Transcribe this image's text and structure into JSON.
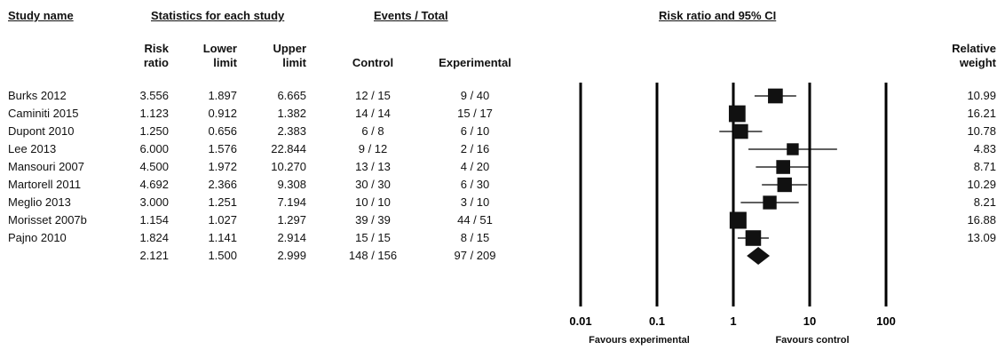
{
  "headers": {
    "study_name": "Study name",
    "statistics": "Statistics for each study",
    "events": "Events / Total",
    "plot": "Risk ratio and 95% CI"
  },
  "columns": {
    "risk_ratio": [
      "Risk",
      "ratio"
    ],
    "lower_limit": [
      "Lower",
      "limit"
    ],
    "upper_limit": [
      "Upper",
      "limit"
    ],
    "control": "Control",
    "experimental": "Experimental",
    "relative_weight": [
      "Relative",
      "weight"
    ]
  },
  "rows": [
    {
      "study": "Burks 2012",
      "rr": "3.556",
      "lower": "1.897",
      "upper": "6.665",
      "control": "12 / 15",
      "experimental": "9 / 40",
      "weight": "10.99"
    },
    {
      "study": "Caminiti 2015",
      "rr": "1.123",
      "lower": "0.912",
      "upper": "1.382",
      "control": "14 / 14",
      "experimental": "15 / 17",
      "weight": "16.21"
    },
    {
      "study": "Dupont 2010",
      "rr": "1.250",
      "lower": "0.656",
      "upper": "2.383",
      "control": "6 / 8",
      "experimental": "6 / 10",
      "weight": "10.78"
    },
    {
      "study": "Lee 2013",
      "rr": "6.000",
      "lower": "1.576",
      "upper": "22.844",
      "control": "9 / 12",
      "experimental": "2 / 16",
      "weight": "4.83"
    },
    {
      "study": "Mansouri 2007",
      "rr": "4.500",
      "lower": "1.972",
      "upper": "10.270",
      "control": "13 / 13",
      "experimental": "4 / 20",
      "weight": "8.71"
    },
    {
      "study": "Martorell 2011",
      "rr": "4.692",
      "lower": "2.366",
      "upper": "9.308",
      "control": "30 / 30",
      "experimental": "6 / 30",
      "weight": "10.29"
    },
    {
      "study": "Meglio 2013",
      "rr": "3.000",
      "lower": "1.251",
      "upper": "7.194",
      "control": "10 / 10",
      "experimental": "3 / 10",
      "weight": "8.21"
    },
    {
      "study": "Morisset 2007b",
      "rr": "1.154",
      "lower": "1.027",
      "upper": "1.297",
      "control": "39 / 39",
      "experimental": "44 / 51",
      "weight": "16.88"
    },
    {
      "study": "Pajno 2010",
      "rr": "1.824",
      "lower": "1.141",
      "upper": "2.914",
      "control": "15 / 15",
      "experimental": "8 / 15",
      "weight": "13.09"
    }
  ],
  "summary": {
    "study": "",
    "rr": "2.121",
    "lower": "1.500",
    "upper": "2.999",
    "control": "148 / 156",
    "experimental": "97 / 209",
    "weight": ""
  },
  "chart_data": {
    "type": "forest",
    "scale": "log",
    "x_ticks": [
      0.01,
      0.1,
      1,
      10,
      100
    ],
    "x_tick_labels": [
      "0.01",
      "0.1",
      "1",
      "10",
      "100"
    ],
    "xlim": [
      0.01,
      100
    ],
    "favours_left": "Favours experimental",
    "favours_right": "Favours control",
    "studies": [
      {
        "rr": 3.556,
        "lower": 1.897,
        "upper": 6.665,
        "weight": 10.99
      },
      {
        "rr": 1.123,
        "lower": 0.912,
        "upper": 1.382,
        "weight": 16.21
      },
      {
        "rr": 1.25,
        "lower": 0.656,
        "upper": 2.383,
        "weight": 10.78
      },
      {
        "rr": 6.0,
        "lower": 1.576,
        "upper": 22.844,
        "weight": 4.83
      },
      {
        "rr": 4.5,
        "lower": 1.972,
        "upper": 10.27,
        "weight": 8.71
      },
      {
        "rr": 4.692,
        "lower": 2.366,
        "upper": 9.308,
        "weight": 10.29
      },
      {
        "rr": 3.0,
        "lower": 1.251,
        "upper": 7.194,
        "weight": 8.21
      },
      {
        "rr": 1.154,
        "lower": 1.027,
        "upper": 1.297,
        "weight": 16.88
      },
      {
        "rr": 1.824,
        "lower": 1.141,
        "upper": 2.914,
        "weight": 13.09
      }
    ],
    "pooled": {
      "rr": 2.121,
      "lower": 1.5,
      "upper": 2.999
    }
  }
}
